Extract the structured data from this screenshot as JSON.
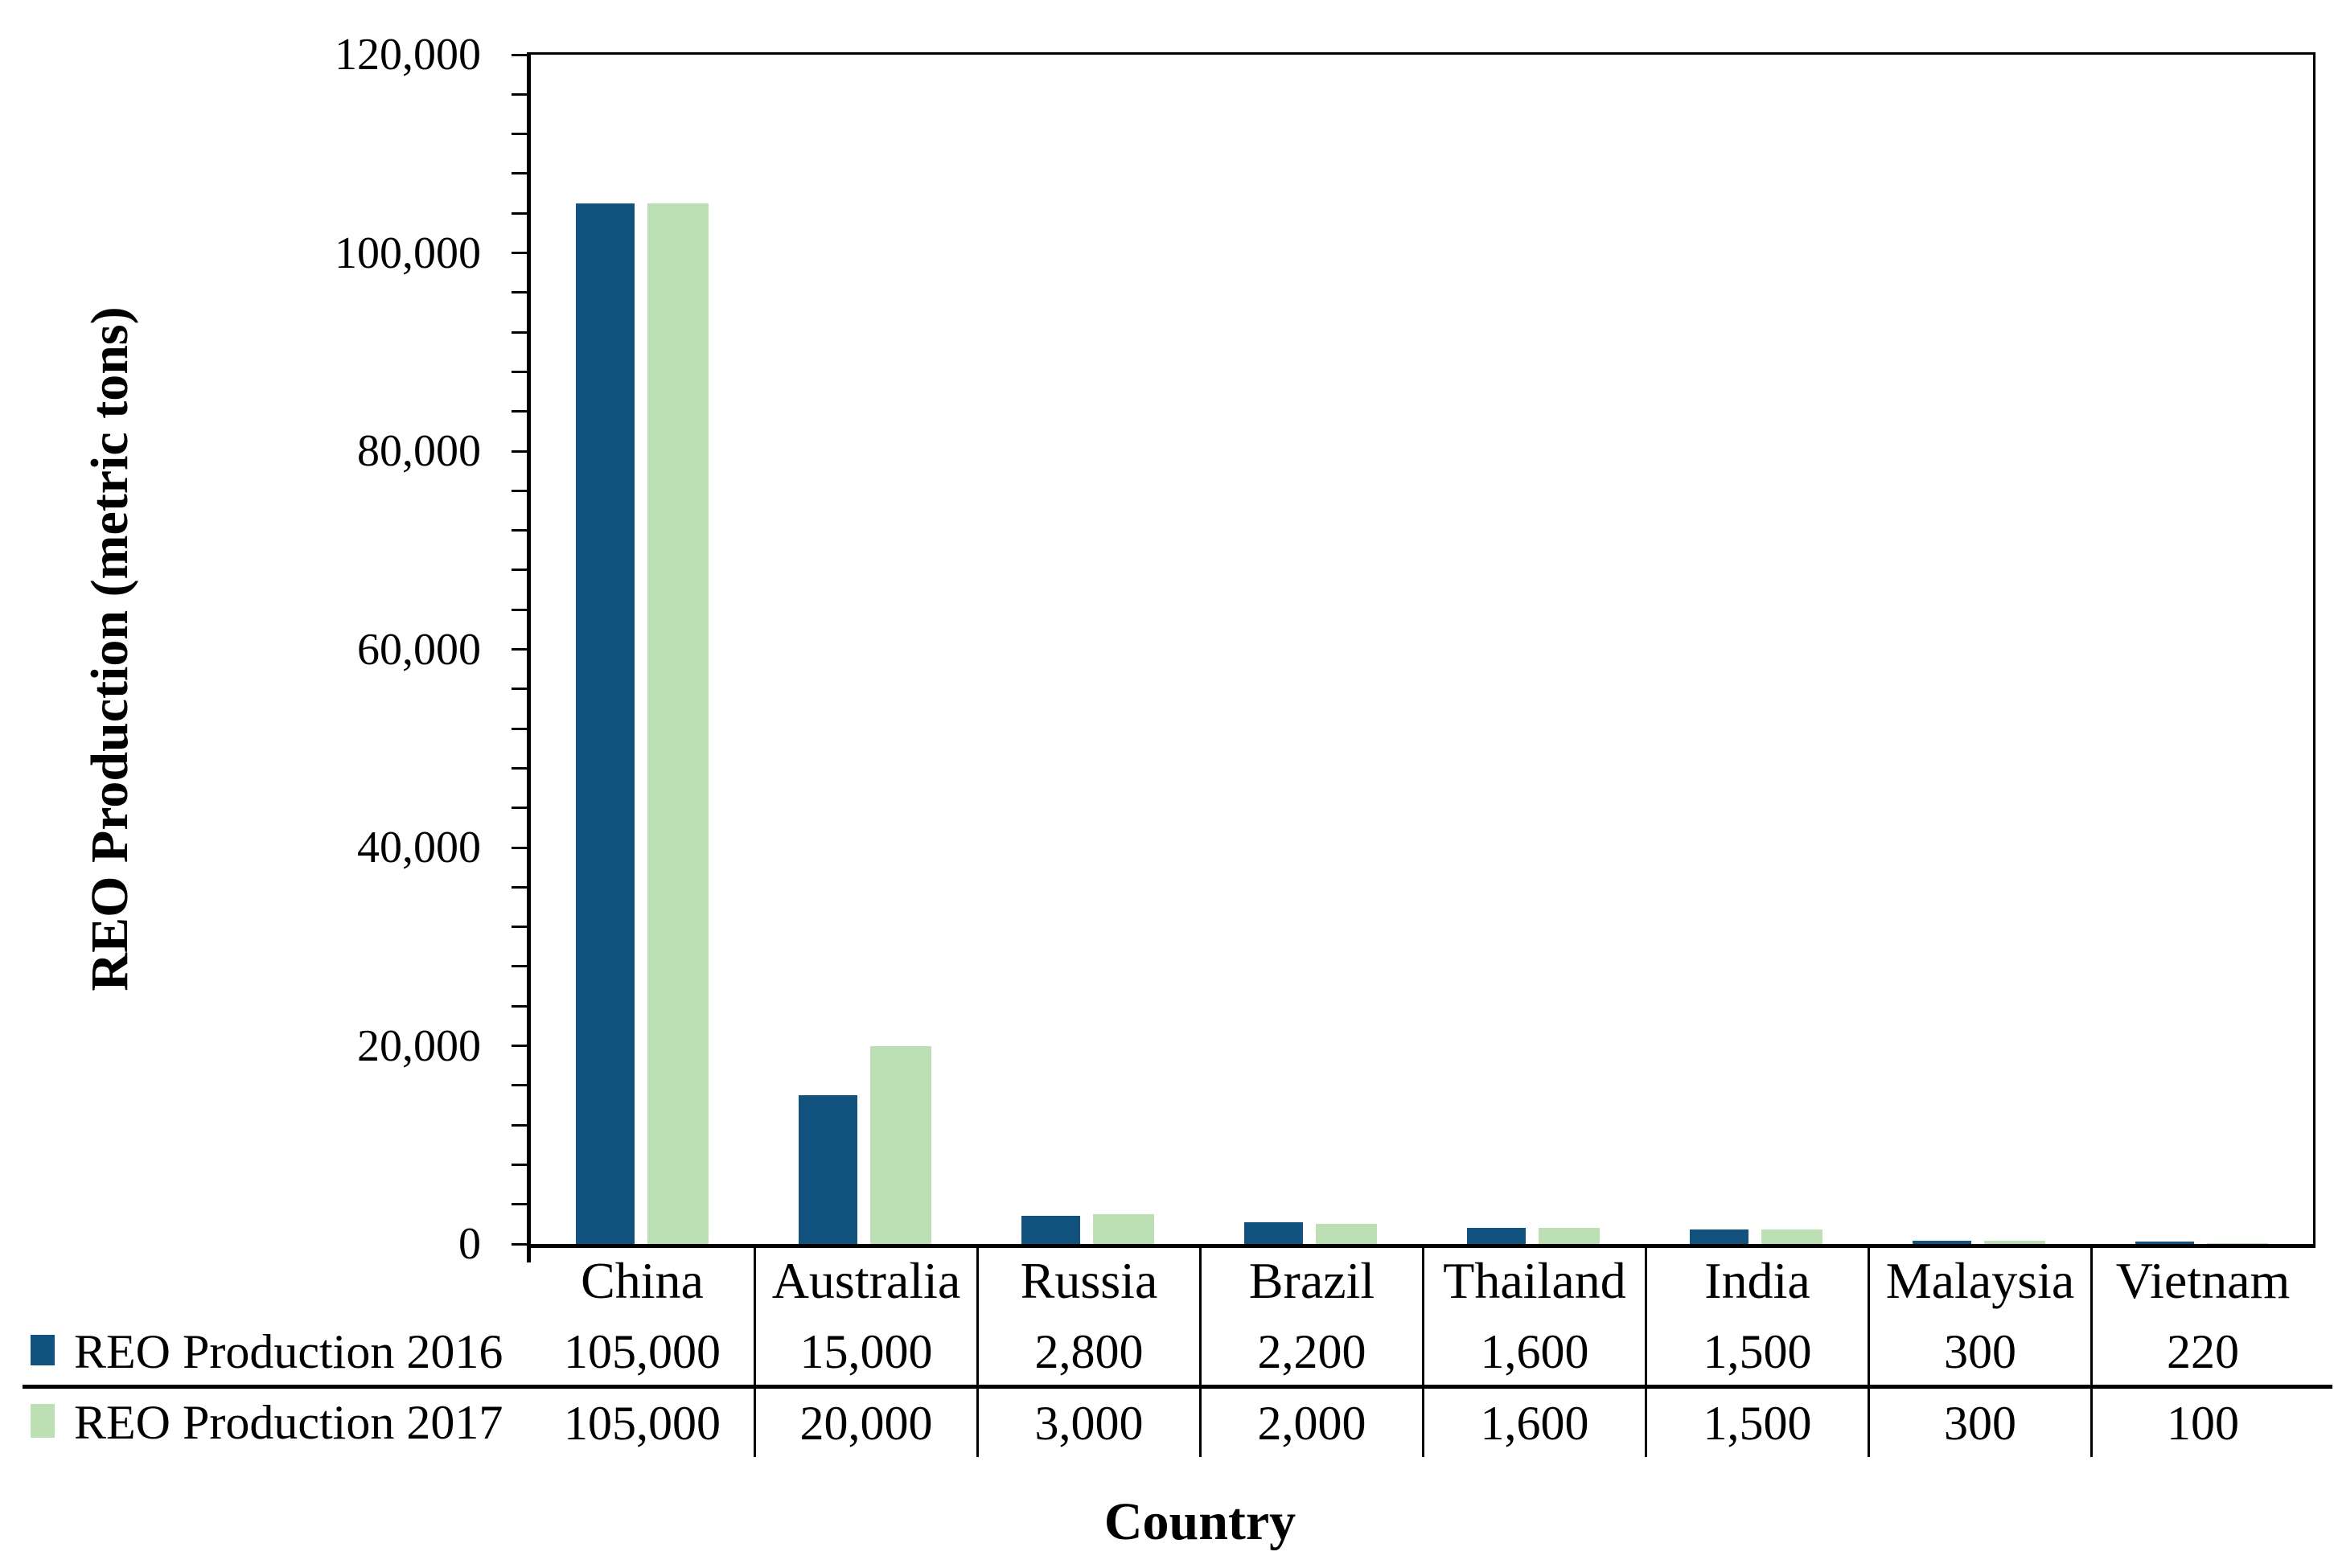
{
  "chart_data": {
    "type": "bar",
    "title": "",
    "xlabel": "Country",
    "ylabel": "REO Production (metric tons)",
    "categories": [
      "China",
      "Australia",
      "Russia",
      "Brazil",
      "Thailand",
      "India",
      "Malaysia",
      "Vietnam"
    ],
    "series": [
      {
        "name": "REO Production 2016",
        "color": "#11537E",
        "values": [
          105000,
          15000,
          2800,
          2200,
          1600,
          1500,
          300,
          220
        ]
      },
      {
        "name": "REO Production 2017",
        "color": "#BCDFB3",
        "values": [
          105000,
          20000,
          3000,
          2000,
          1600,
          1500,
          300,
          100
        ]
      }
    ],
    "table_values": [
      [
        "105,000",
        "15,000",
        "2,800",
        "2,200",
        "1,600",
        "1,500",
        "300",
        "220"
      ],
      [
        "105,000",
        "20,000",
        "3,000",
        "2,000",
        "1,600",
        "1,500",
        "300",
        "100"
      ]
    ],
    "ylim": [
      0,
      120000
    ],
    "ytick_step": 20000,
    "yminor_step": 4000,
    "ytick_labels": [
      "0",
      "20,000",
      "40,000",
      "60,000",
      "80,000",
      "100,000",
      "120,000"
    ],
    "grid": false,
    "legend_position": "left-of-data-table",
    "axis_color": "#000000",
    "background": "#FFFFFF"
  }
}
